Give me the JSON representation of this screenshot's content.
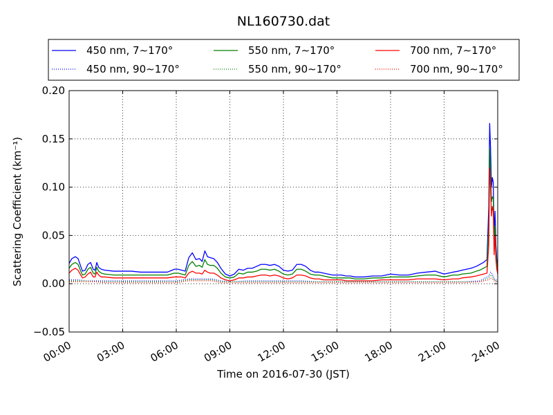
{
  "chart_data": {
    "type": "line",
    "title": "NL160730.dat",
    "xlabel": "Time on 2016-07-30 (JST)",
    "ylabel": "Scattering Coefficient (km⁻¹)",
    "xlim": [
      0,
      24
    ],
    "ylim": [
      -0.05,
      0.2
    ],
    "x_ticks": [
      0,
      3,
      6,
      9,
      12,
      15,
      18,
      21,
      24
    ],
    "x_tick_labels": [
      "00:00",
      "03:00",
      "06:00",
      "09:00",
      "12:00",
      "15:00",
      "18:00",
      "21:00",
      "24:00"
    ],
    "y_ticks": [
      -0.05,
      0.0,
      0.05,
      0.1,
      0.15,
      0.2
    ],
    "y_tick_labels": [
      "−0.05",
      "0.00",
      "0.05",
      "0.10",
      "0.15",
      "0.20"
    ],
    "grid": true,
    "legend_position": "top, above plot, 3 columns",
    "series": [
      {
        "name": "450 nm, 7∼170°",
        "color": "#0000ff",
        "style": "solid",
        "x": [
          0.0,
          0.15,
          0.35,
          0.5,
          0.65,
          0.75,
          0.9,
          1.05,
          1.2,
          1.35,
          1.45,
          1.55,
          1.65,
          1.8,
          2.0,
          2.5,
          3.0,
          3.5,
          4.0,
          4.5,
          5.0,
          5.5,
          5.9,
          6.1,
          6.3,
          6.5,
          6.7,
          6.9,
          7.1,
          7.3,
          7.45,
          7.6,
          7.75,
          7.9,
          8.1,
          8.3,
          8.5,
          8.75,
          9.0,
          9.25,
          9.5,
          9.75,
          10.0,
          10.25,
          10.5,
          10.75,
          11.0,
          11.25,
          11.5,
          11.75,
          12.0,
          12.25,
          12.5,
          12.75,
          13.0,
          13.25,
          13.5,
          13.75,
          14.0,
          14.25,
          14.5,
          14.75,
          15.0,
          15.25,
          15.5,
          15.75,
          16.0,
          16.5,
          17.0,
          17.5,
          18.0,
          18.5,
          19.0,
          19.5,
          20.0,
          20.5,
          21.0,
          21.5,
          21.8,
          22.0,
          22.5,
          22.8,
          23.0,
          23.2,
          23.4,
          23.5,
          23.55,
          23.6,
          23.65,
          23.7,
          23.75,
          23.8,
          23.85,
          23.9,
          23.95,
          24.0
        ],
        "values": [
          0.021,
          0.026,
          0.028,
          0.026,
          0.018,
          0.013,
          0.014,
          0.02,
          0.022,
          0.015,
          0.014,
          0.022,
          0.017,
          0.015,
          0.014,
          0.013,
          0.013,
          0.013,
          0.012,
          0.012,
          0.012,
          0.012,
          0.015,
          0.015,
          0.014,
          0.013,
          0.027,
          0.032,
          0.025,
          0.026,
          0.023,
          0.034,
          0.028,
          0.027,
          0.026,
          0.022,
          0.016,
          0.01,
          0.008,
          0.01,
          0.015,
          0.014,
          0.016,
          0.016,
          0.018,
          0.02,
          0.02,
          0.019,
          0.02,
          0.018,
          0.014,
          0.013,
          0.014,
          0.02,
          0.02,
          0.018,
          0.014,
          0.012,
          0.012,
          0.011,
          0.01,
          0.009,
          0.009,
          0.009,
          0.008,
          0.008,
          0.007,
          0.007,
          0.008,
          0.008,
          0.01,
          0.009,
          0.009,
          0.011,
          0.012,
          0.013,
          0.01,
          0.012,
          0.013,
          0.014,
          0.016,
          0.018,
          0.02,
          0.022,
          0.025,
          0.08,
          0.166,
          0.14,
          0.1,
          0.11,
          0.105,
          0.05,
          0.075,
          0.04,
          0.025,
          0.018
        ]
      },
      {
        "name": "550 nm, 7∼170°",
        "color": "#008000",
        "style": "solid",
        "x": [
          0.0,
          0.15,
          0.35,
          0.5,
          0.65,
          0.75,
          0.9,
          1.05,
          1.2,
          1.35,
          1.45,
          1.55,
          1.65,
          1.8,
          2.0,
          2.5,
          3.0,
          3.5,
          4.0,
          4.5,
          5.0,
          5.5,
          5.9,
          6.1,
          6.3,
          6.5,
          6.7,
          6.9,
          7.1,
          7.3,
          7.45,
          7.6,
          7.75,
          7.9,
          8.1,
          8.3,
          8.5,
          8.75,
          9.0,
          9.25,
          9.5,
          9.75,
          10.0,
          10.25,
          10.5,
          10.75,
          11.0,
          11.25,
          11.5,
          11.75,
          12.0,
          12.25,
          12.5,
          12.75,
          13.0,
          13.25,
          13.5,
          13.75,
          14.0,
          14.25,
          14.5,
          14.75,
          15.0,
          15.25,
          15.5,
          15.75,
          16.0,
          16.5,
          17.0,
          17.5,
          18.0,
          18.5,
          19.0,
          19.5,
          20.0,
          20.5,
          21.0,
          21.5,
          21.8,
          22.0,
          22.5,
          22.8,
          23.0,
          23.2,
          23.4,
          23.5,
          23.55,
          23.6,
          23.65,
          23.7,
          23.75,
          23.8,
          23.85,
          23.9,
          23.95,
          24.0
        ],
        "values": [
          0.016,
          0.02,
          0.022,
          0.02,
          0.013,
          0.009,
          0.01,
          0.015,
          0.017,
          0.011,
          0.01,
          0.017,
          0.013,
          0.011,
          0.01,
          0.009,
          0.009,
          0.009,
          0.009,
          0.009,
          0.009,
          0.009,
          0.011,
          0.011,
          0.01,
          0.009,
          0.019,
          0.023,
          0.018,
          0.019,
          0.017,
          0.025,
          0.02,
          0.019,
          0.019,
          0.016,
          0.011,
          0.007,
          0.006,
          0.007,
          0.011,
          0.01,
          0.012,
          0.012,
          0.013,
          0.015,
          0.015,
          0.014,
          0.015,
          0.013,
          0.01,
          0.009,
          0.01,
          0.015,
          0.015,
          0.013,
          0.01,
          0.009,
          0.009,
          0.008,
          0.007,
          0.006,
          0.006,
          0.006,
          0.006,
          0.006,
          0.005,
          0.005,
          0.006,
          0.006,
          0.007,
          0.007,
          0.007,
          0.008,
          0.009,
          0.009,
          0.007,
          0.009,
          0.009,
          0.01,
          0.011,
          0.013,
          0.014,
          0.016,
          0.018,
          0.06,
          0.14,
          0.118,
          0.085,
          0.09,
          0.088,
          0.04,
          0.06,
          0.032,
          0.02,
          0.014
        ]
      },
      {
        "name": "700 nm, 7∼170°",
        "color": "#ff0000",
        "style": "solid",
        "x": [
          0.0,
          0.15,
          0.35,
          0.5,
          0.65,
          0.75,
          0.9,
          1.05,
          1.2,
          1.35,
          1.45,
          1.55,
          1.65,
          1.8,
          2.0,
          2.5,
          3.0,
          3.5,
          4.0,
          4.5,
          5.0,
          5.5,
          5.9,
          6.1,
          6.3,
          6.5,
          6.7,
          6.9,
          7.1,
          7.3,
          7.45,
          7.6,
          7.75,
          7.9,
          8.1,
          8.3,
          8.5,
          8.75,
          9.0,
          9.25,
          9.5,
          9.75,
          10.0,
          10.25,
          10.5,
          10.75,
          11.0,
          11.25,
          11.5,
          11.75,
          12.0,
          12.25,
          12.5,
          12.75,
          13.0,
          13.25,
          13.5,
          13.75,
          14.0,
          14.25,
          14.5,
          14.75,
          15.0,
          15.25,
          15.5,
          15.75,
          16.0,
          16.5,
          17.0,
          17.5,
          18.0,
          18.5,
          19.0,
          19.5,
          20.0,
          20.5,
          21.0,
          21.5,
          21.8,
          22.0,
          22.5,
          22.8,
          23.0,
          23.2,
          23.4,
          23.5,
          23.55,
          23.6,
          23.65,
          23.7,
          23.75,
          23.8,
          23.85,
          23.9,
          23.95,
          24.0
        ],
        "values": [
          0.011,
          0.014,
          0.016,
          0.014,
          0.009,
          0.006,
          0.007,
          0.01,
          0.012,
          0.007,
          0.007,
          0.012,
          0.009,
          0.007,
          0.007,
          0.006,
          0.006,
          0.006,
          0.006,
          0.006,
          0.006,
          0.006,
          0.007,
          0.007,
          0.007,
          0.006,
          0.011,
          0.013,
          0.011,
          0.011,
          0.01,
          0.014,
          0.012,
          0.011,
          0.011,
          0.009,
          0.006,
          0.004,
          0.003,
          0.004,
          0.006,
          0.006,
          0.007,
          0.007,
          0.008,
          0.009,
          0.009,
          0.008,
          0.009,
          0.008,
          0.006,
          0.005,
          0.006,
          0.009,
          0.009,
          0.008,
          0.006,
          0.005,
          0.005,
          0.004,
          0.004,
          0.004,
          0.004,
          0.004,
          0.003,
          0.003,
          0.003,
          0.003,
          0.003,
          0.004,
          0.004,
          0.004,
          0.004,
          0.005,
          0.005,
          0.005,
          0.004,
          0.005,
          0.005,
          0.006,
          0.007,
          0.008,
          0.009,
          0.01,
          0.011,
          0.04,
          0.12,
          0.1,
          0.07,
          0.08,
          0.075,
          0.03,
          0.05,
          0.025,
          0.015,
          0.01
        ]
      },
      {
        "name": "450 nm, 90∼170°",
        "color": "#0000ff",
        "style": "dotted",
        "x": [
          0,
          0.5,
          1,
          1.5,
          2,
          3,
          4,
          5,
          6,
          6.7,
          7.0,
          7.5,
          8.0,
          8.5,
          9,
          10,
          11,
          12,
          13,
          14,
          15,
          16,
          17,
          18,
          19,
          20,
          21,
          22,
          23,
          23.5,
          23.6,
          23.7,
          23.8,
          24
        ],
        "values": [
          0.004,
          0.004,
          0.003,
          0.003,
          0.003,
          0.003,
          0.003,
          0.003,
          0.003,
          0.005,
          0.005,
          0.005,
          0.005,
          0.003,
          0.002,
          0.003,
          0.003,
          0.003,
          0.003,
          0.002,
          0.002,
          0.002,
          0.002,
          0.002,
          0.002,
          0.002,
          0.002,
          0.002,
          0.003,
          0.008,
          0.012,
          0.01,
          0.005,
          0.003
        ]
      },
      {
        "name": "550 nm, 90∼170°",
        "color": "#008000",
        "style": "dotted",
        "x": [
          0,
          0.5,
          1,
          1.5,
          2,
          3,
          4,
          5,
          6,
          6.7,
          7.0,
          7.5,
          8.0,
          8.5,
          9,
          10,
          11,
          12,
          13,
          14,
          15,
          16,
          17,
          18,
          19,
          20,
          21,
          22,
          23,
          23.5,
          23.6,
          23.7,
          23.8,
          24
        ],
        "values": [
          0.003,
          0.003,
          0.003,
          0.002,
          0.002,
          0.002,
          0.002,
          0.002,
          0.002,
          0.004,
          0.004,
          0.004,
          0.004,
          0.002,
          0.002,
          0.002,
          0.002,
          0.002,
          0.002,
          0.002,
          0.002,
          0.002,
          0.002,
          0.002,
          0.002,
          0.002,
          0.002,
          0.002,
          0.002,
          0.006,
          0.009,
          0.008,
          0.004,
          0.002
        ]
      },
      {
        "name": "700 nm, 90∼170°",
        "color": "#ff0000",
        "style": "dotted",
        "x": [
          0,
          0.5,
          1,
          1.5,
          2,
          3,
          4,
          5,
          6,
          6.7,
          7.0,
          7.5,
          8.0,
          8.5,
          9,
          10,
          11,
          12,
          13,
          14,
          15,
          16,
          17,
          18,
          19,
          20,
          21,
          22,
          23,
          23.5,
          23.6,
          23.7,
          23.8,
          24
        ],
        "values": [
          0.002,
          0.002,
          0.002,
          0.002,
          0.001,
          0.001,
          0.001,
          0.001,
          0.001,
          0.003,
          0.003,
          0.003,
          0.003,
          0.001,
          0.001,
          0.001,
          0.001,
          0.001,
          0.001,
          0.001,
          0.001,
          0.001,
          0.001,
          0.001,
          0.001,
          0.001,
          0.001,
          0.001,
          0.002,
          0.004,
          0.006,
          0.005,
          0.003,
          0.001
        ]
      }
    ]
  }
}
